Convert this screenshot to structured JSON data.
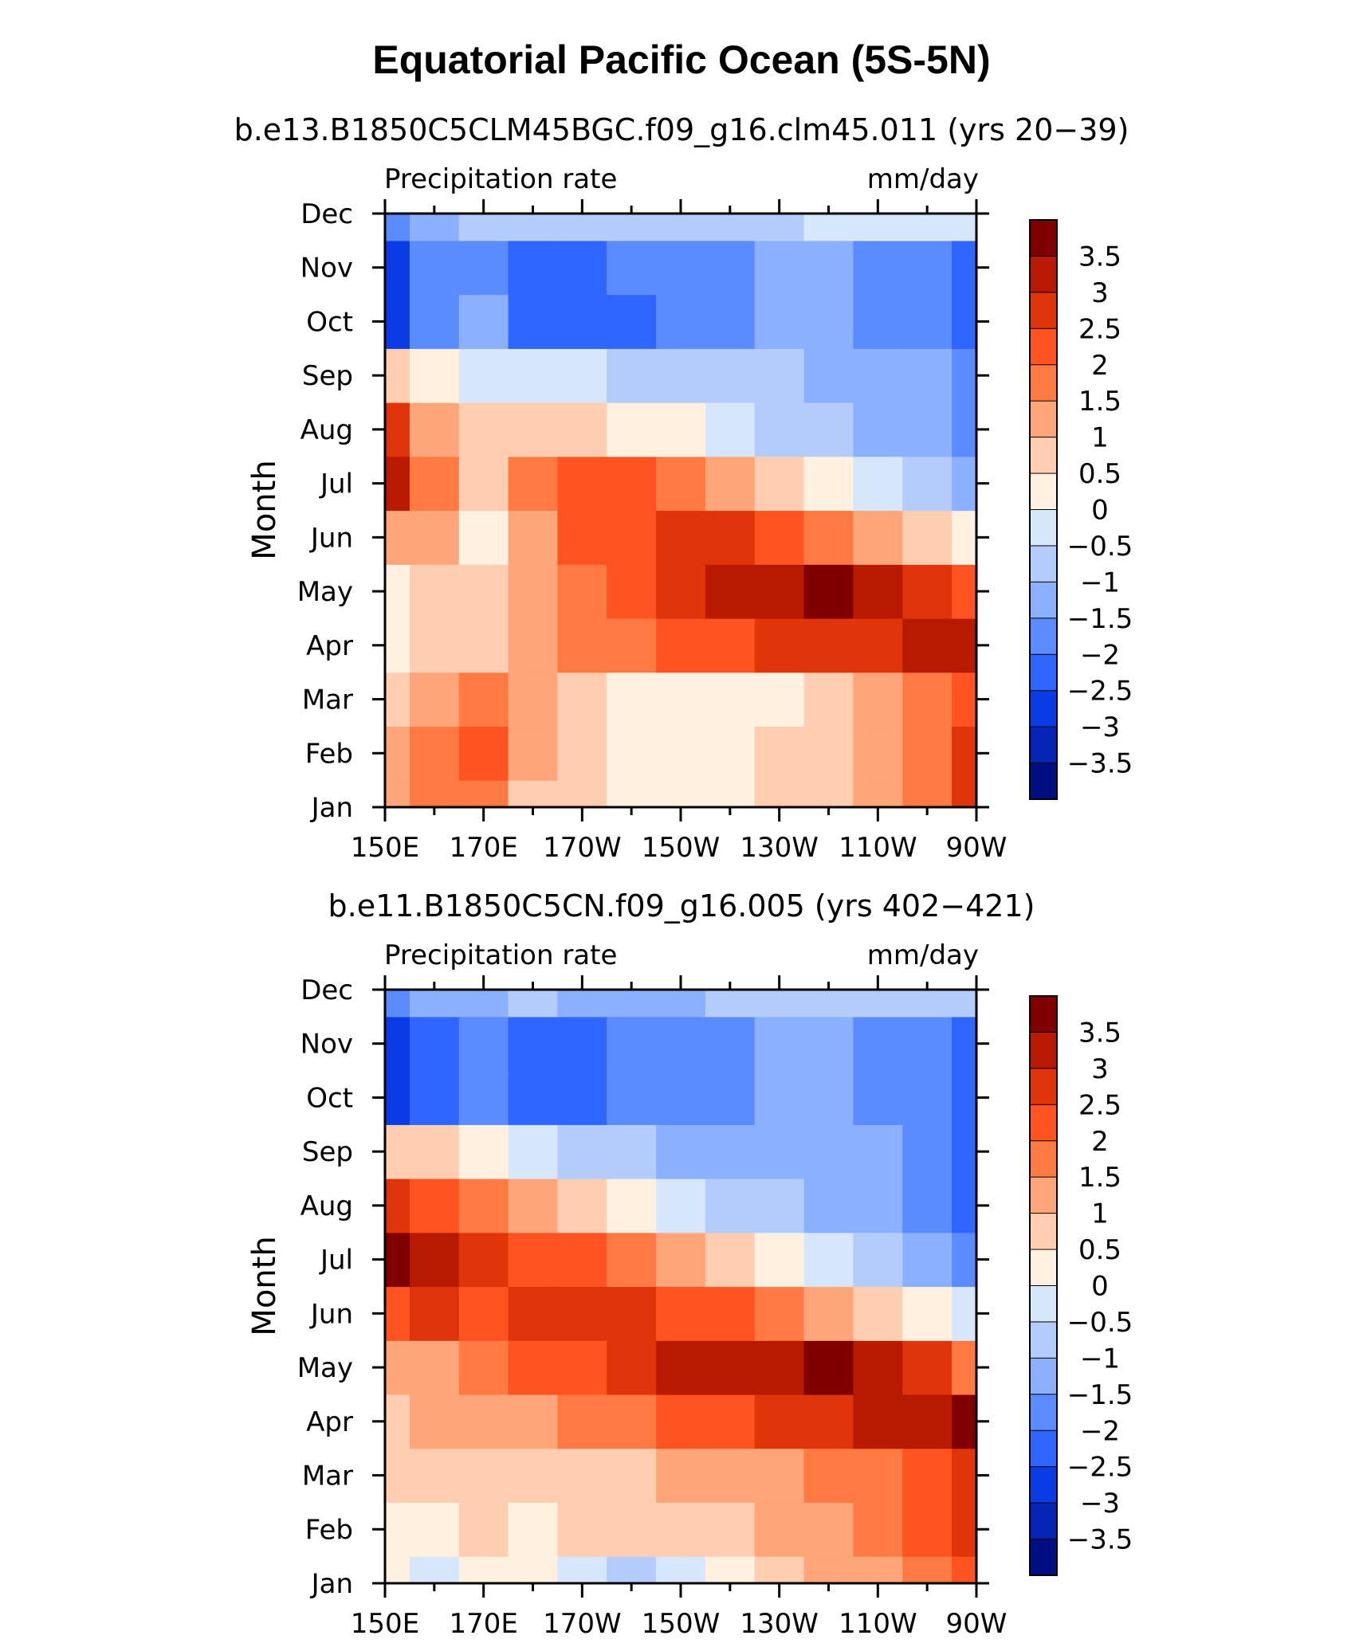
{
  "page": {
    "title": "Equatorial Pacific Ocean (5S-5N)"
  },
  "panels": [
    {
      "subtitle": "b.e13.B1850C5CLM45BGC.f09_g16.clm45.011 (yrs 20−39)",
      "left_string": "Precipitation rate",
      "right_string": "mm/day",
      "ylabel": "Month"
    },
    {
      "subtitle": "b.e11.B1850C5CN.f09_g16.005 (yrs 402−421)",
      "left_string": "Precipitation rate",
      "right_string": "mm/day",
      "ylabel": "Month"
    }
  ],
  "colorbar": {
    "levels": [
      "3.5",
      "3",
      "2.5",
      "2",
      "1.5",
      "1",
      "0.5",
      "0",
      "−0.5",
      "−1",
      "−1.5",
      "−2",
      "−2.5",
      "−3",
      "−3.5"
    ],
    "colors": [
      "#800000",
      "#b71a00",
      "#e0340a",
      "#ff5322",
      "#ff7a42",
      "#ffa57a",
      "#ffcdb0",
      "#fff0e0",
      "#d6e6fb",
      "#b4ccfb",
      "#8bb0ff",
      "#5a8cff",
      "#2e66ff",
      "#0a3ce6",
      "#0526b4",
      "#000f80"
    ]
  },
  "chart_data": [
    {
      "type": "heatmap",
      "title": "b.e13.B1850C5CLM45BGC.f09_g16.clm45.011 (yrs 20−39)",
      "xlabel": "",
      "ylabel": "Month",
      "x": [
        "150E",
        "160E",
        "170E",
        "180",
        "170W",
        "160W",
        "150W",
        "140W",
        "130W",
        "120W",
        "110W",
        "100W",
        "90W"
      ],
      "x_ticks": [
        "150E",
        "170E",
        "170W",
        "150W",
        "130W",
        "110W",
        "90W"
      ],
      "y": [
        "Jan",
        "Feb",
        "Mar",
        "Apr",
        "May",
        "Jun",
        "Jul",
        "Aug",
        "Sep",
        "Oct",
        "Nov",
        "Dec"
      ],
      "units": "mm/day",
      "values": [
        [
          1.0,
          1.5,
          1.5,
          0.5,
          0.5,
          0.0,
          0.0,
          0.0,
          0.5,
          0.5,
          1.0,
          1.5,
          2.5
        ],
        [
          1.0,
          1.5,
          2.0,
          1.0,
          0.5,
          0.0,
          0.0,
          0.0,
          0.5,
          0.5,
          1.0,
          1.5,
          2.5
        ],
        [
          0.5,
          1.0,
          1.5,
          1.0,
          0.5,
          0.0,
          0.0,
          0.0,
          0.0,
          0.5,
          1.0,
          1.5,
          2.0
        ],
        [
          0.0,
          0.5,
          0.5,
          1.0,
          1.5,
          1.5,
          2.0,
          2.0,
          2.5,
          2.5,
          2.5,
          3.0,
          3.0
        ],
        [
          0.0,
          0.5,
          0.5,
          1.0,
          1.5,
          2.0,
          2.5,
          3.0,
          3.0,
          3.5,
          3.0,
          2.5,
          2.0
        ],
        [
          1.0,
          1.0,
          0.0,
          1.0,
          2.0,
          2.0,
          2.5,
          2.5,
          2.0,
          1.5,
          1.0,
          0.5,
          0.0
        ],
        [
          3.0,
          1.5,
          0.5,
          1.5,
          2.0,
          2.0,
          1.5,
          1.0,
          0.5,
          0.0,
          -0.5,
          -1.0,
          -1.5
        ],
        [
          2.5,
          1.0,
          0.5,
          0.5,
          0.5,
          0.0,
          0.0,
          -0.5,
          -1.0,
          -1.0,
          -1.5,
          -1.5,
          -2.0
        ],
        [
          0.5,
          0.0,
          -0.5,
          -0.5,
          -0.5,
          -1.0,
          -1.0,
          -1.0,
          -1.0,
          -1.5,
          -1.5,
          -1.5,
          -2.0
        ],
        [
          -3.0,
          -2.0,
          -1.5,
          -2.5,
          -2.5,
          -2.5,
          -2.0,
          -2.0,
          -1.5,
          -1.5,
          -2.0,
          -2.0,
          -2.5
        ],
        [
          -3.0,
          -2.0,
          -2.0,
          -2.5,
          -2.5,
          -2.0,
          -2.0,
          -2.0,
          -1.5,
          -1.5,
          -2.0,
          -2.0,
          -2.5
        ],
        [
          -2.0,
          -1.5,
          -1.0,
          -1.0,
          -1.0,
          -1.0,
          -1.0,
          -1.0,
          -1.0,
          -0.5,
          -0.5,
          -0.5,
          -0.5
        ]
      ]
    },
    {
      "type": "heatmap",
      "title": "b.e11.B1850C5CN.f09_g16.005 (yrs 402−421)",
      "xlabel": "",
      "ylabel": "Month",
      "x": [
        "150E",
        "160E",
        "170E",
        "180",
        "170W",
        "160W",
        "150W",
        "140W",
        "130W",
        "120W",
        "110W",
        "100W",
        "90W"
      ],
      "x_ticks": [
        "150E",
        "170E",
        "170W",
        "150W",
        "130W",
        "110W",
        "90W"
      ],
      "y": [
        "Jan",
        "Feb",
        "Mar",
        "Apr",
        "May",
        "Jun",
        "Jul",
        "Aug",
        "Sep",
        "Oct",
        "Nov",
        "Dec"
      ],
      "units": "mm/day",
      "values": [
        [
          0.0,
          -0.5,
          0.0,
          0.0,
          -0.5,
          -1.0,
          -0.5,
          0.0,
          0.5,
          1.0,
          1.0,
          1.5,
          2.0
        ],
        [
          0.0,
          0.0,
          0.5,
          0.0,
          0.5,
          0.5,
          0.5,
          0.5,
          1.0,
          1.0,
          1.5,
          2.0,
          2.5
        ],
        [
          0.5,
          0.5,
          0.5,
          0.5,
          0.5,
          0.5,
          1.0,
          1.0,
          1.0,
          1.5,
          1.5,
          2.0,
          2.5
        ],
        [
          0.5,
          1.0,
          1.0,
          1.0,
          1.5,
          1.5,
          2.0,
          2.0,
          2.5,
          2.5,
          3.0,
          3.0,
          3.5
        ],
        [
          1.0,
          1.0,
          1.5,
          2.0,
          2.0,
          2.5,
          3.0,
          3.0,
          3.0,
          3.5,
          3.0,
          2.5,
          1.5
        ],
        [
          2.0,
          2.5,
          2.0,
          2.5,
          2.5,
          2.5,
          2.0,
          2.0,
          1.5,
          1.0,
          0.5,
          0.0,
          -0.5
        ],
        [
          3.5,
          3.0,
          2.5,
          2.0,
          2.0,
          1.5,
          1.0,
          0.5,
          0.0,
          -0.5,
          -1.0,
          -1.5,
          -2.0
        ],
        [
          2.5,
          2.0,
          1.5,
          1.0,
          0.5,
          0.0,
          -0.5,
          -1.0,
          -1.0,
          -1.5,
          -1.5,
          -2.0,
          -2.5
        ],
        [
          0.5,
          0.5,
          0.0,
          -0.5,
          -1.0,
          -1.0,
          -1.5,
          -1.5,
          -1.5,
          -1.5,
          -1.5,
          -2.0,
          -2.5
        ],
        [
          -3.0,
          -2.5,
          -2.0,
          -2.5,
          -2.5,
          -2.0,
          -2.0,
          -2.0,
          -1.5,
          -1.5,
          -2.0,
          -2.0,
          -2.5
        ],
        [
          -3.0,
          -2.5,
          -2.0,
          -2.5,
          -2.5,
          -2.0,
          -2.0,
          -2.0,
          -1.5,
          -1.5,
          -2.0,
          -2.0,
          -2.5
        ],
        [
          -2.0,
          -1.5,
          -1.5,
          -1.0,
          -1.5,
          -1.5,
          -1.5,
          -1.0,
          -1.0,
          -1.0,
          -1.0,
          -1.0,
          -1.0
        ]
      ]
    }
  ]
}
